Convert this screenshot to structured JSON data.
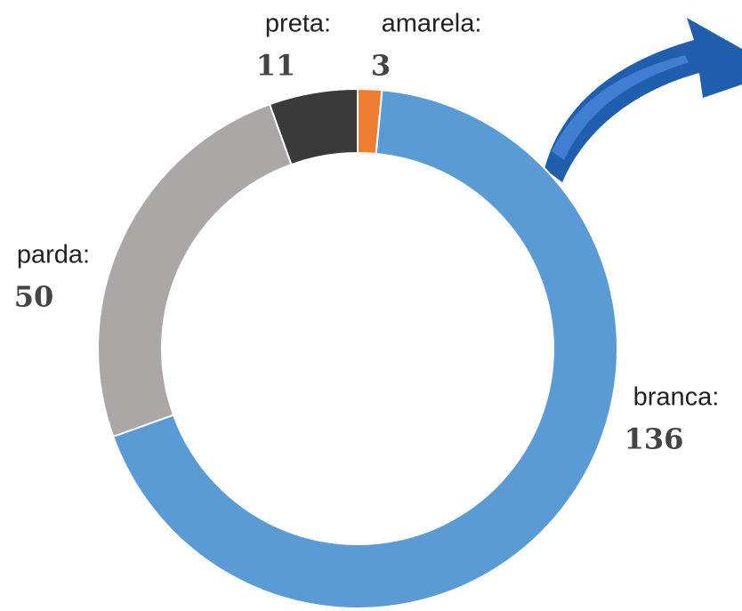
{
  "chart_data": {
    "type": "donut",
    "categories": [
      "amarela:",
      "branca:",
      "parda:",
      "preta:"
    ],
    "values": [
      3,
      136,
      50,
      11
    ],
    "colors": [
      "#ed7d31",
      "#5b9bd5",
      "#aaa7a6",
      "#3a3a3a"
    ]
  }
}
